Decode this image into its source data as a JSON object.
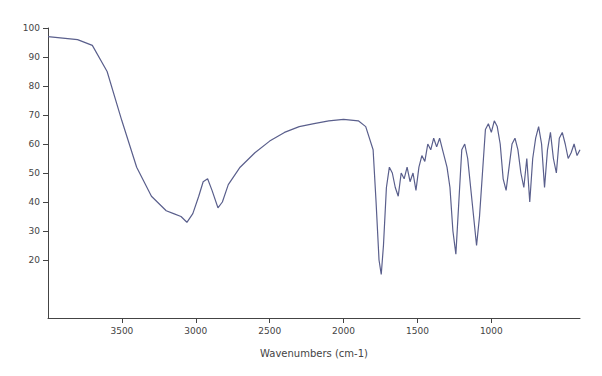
{
  "chart_data": {
    "type": "line",
    "x_label": "Wavenumbers (cm-1)",
    "color": "#5a5f8c",
    "grid": false,
    "xlim": [
      4000,
      400
    ],
    "xticks": [
      3500,
      3000,
      2500,
      2000,
      1500,
      1000
    ],
    "ylim": [
      0,
      100
    ],
    "yticks": [
      20,
      30,
      40,
      50,
      60,
      70,
      80,
      90,
      100
    ],
    "x": [
      4000,
      3900,
      3800,
      3700,
      3600,
      3500,
      3400,
      3300,
      3200,
      3150,
      3100,
      3060,
      3020,
      2980,
      2950,
      2920,
      2890,
      2850,
      2820,
      2780,
      2700,
      2600,
      2500,
      2400,
      2300,
      2200,
      2100,
      2000,
      1900,
      1850,
      1800,
      1780,
      1760,
      1745,
      1730,
      1710,
      1690,
      1670,
      1650,
      1630,
      1610,
      1590,
      1570,
      1550,
      1530,
      1510,
      1490,
      1470,
      1450,
      1430,
      1410,
      1390,
      1370,
      1350,
      1330,
      1300,
      1280,
      1260,
      1240,
      1220,
      1200,
      1180,
      1160,
      1140,
      1120,
      1100,
      1080,
      1060,
      1040,
      1020,
      1000,
      980,
      960,
      940,
      920,
      900,
      880,
      860,
      840,
      820,
      800,
      780,
      760,
      740,
      720,
      700,
      680,
      660,
      640,
      620,
      600,
      580,
      560,
      540,
      520,
      500,
      480,
      460,
      440,
      420,
      400
    ],
    "values": [
      97,
      96.5,
      96,
      94,
      85,
      68,
      52,
      42,
      37,
      36,
      35,
      33,
      36,
      42,
      47,
      48,
      44,
      38,
      40,
      46,
      52,
      57,
      61,
      64,
      66,
      67,
      68,
      68.5,
      68,
      66,
      58,
      40,
      20,
      15,
      25,
      45,
      52,
      50,
      45,
      42,
      50,
      48,
      52,
      47,
      50,
      44,
      52,
      56,
      54,
      60,
      58,
      62,
      59,
      62,
      58,
      52,
      45,
      30,
      22,
      40,
      58,
      60,
      55,
      45,
      35,
      25,
      35,
      50,
      65,
      67,
      64,
      68,
      66,
      60,
      48,
      44,
      52,
      60,
      62,
      58,
      50,
      45,
      55,
      40,
      55,
      62,
      66,
      60,
      45,
      58,
      64,
      55,
      50,
      62,
      64,
      60,
      55,
      57,
      60,
      56,
      58
    ]
  }
}
